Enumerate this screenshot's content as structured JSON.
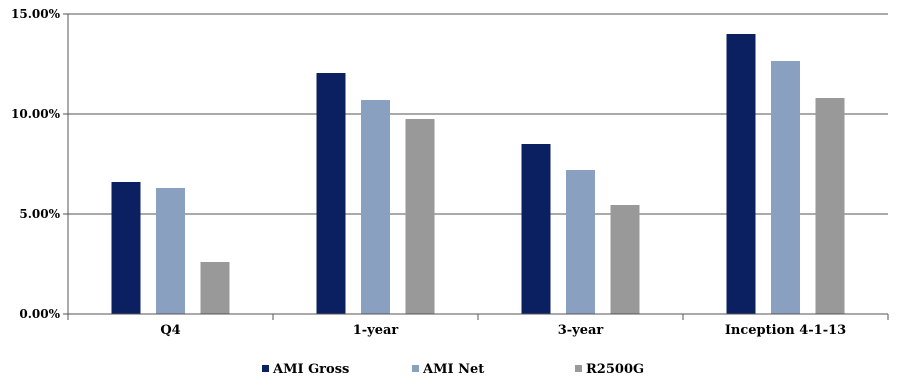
{
  "chart_data": {
    "type": "bar",
    "categories": [
      "Q4",
      "1-year",
      "3-year",
      "Inception 4-1-13"
    ],
    "series": [
      {
        "name": "AMI Gross",
        "color": "#0b2060",
        "values": [
          6.6,
          12.05,
          8.5,
          14.0
        ]
      },
      {
        "name": "AMI Net",
        "color": "#8aa0c0",
        "values": [
          6.3,
          10.7,
          7.2,
          12.65
        ]
      },
      {
        "name": "R2500G",
        "color": "#999999",
        "values": [
          2.6,
          9.75,
          5.45,
          10.8
        ]
      }
    ],
    "ylim": [
      0,
      15
    ],
    "yticks": [
      0,
      5,
      10,
      15
    ],
    "ytick_labels": [
      "0.00%",
      "5.00%",
      "10.00%",
      "15.00%"
    ],
    "gridlines": [
      5,
      10,
      15
    ],
    "legend_position": "bottom",
    "title": "",
    "xlabel": "",
    "ylabel": ""
  }
}
